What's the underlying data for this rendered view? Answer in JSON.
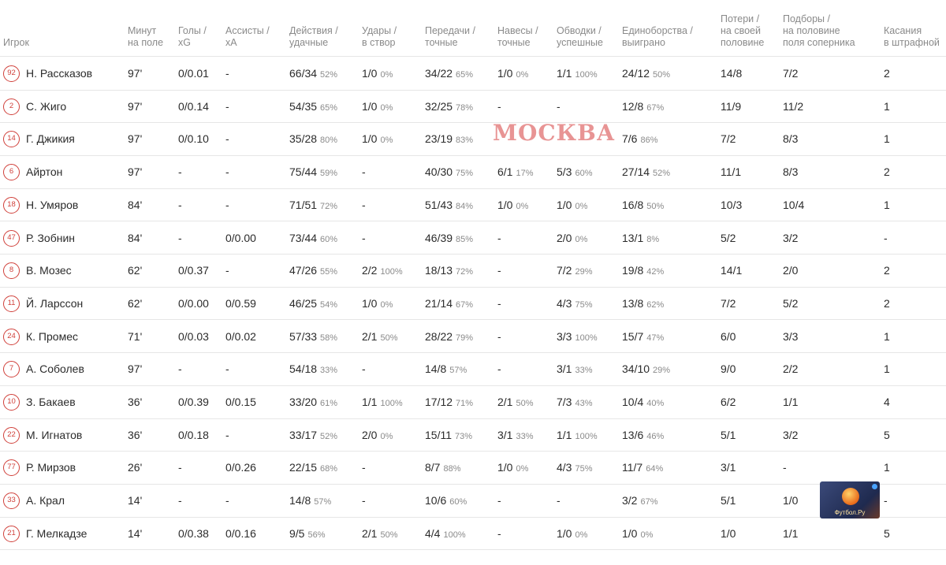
{
  "headers": [
    {
      "l1": "",
      "l2": "Игрок"
    },
    {
      "l1": "Минут",
      "l2": "на поле"
    },
    {
      "l1": "Голы /",
      "l2": "xG"
    },
    {
      "l1": "Ассисты /",
      "l2": "xA"
    },
    {
      "l1": "Действия /",
      "l2": "удачные"
    },
    {
      "l1": "Удары /",
      "l2": "в створ"
    },
    {
      "l1": "Передачи /",
      "l2": "точные"
    },
    {
      "l1": "Навесы /",
      "l2": "точные"
    },
    {
      "l1": "Обводки /",
      "l2": "успешные"
    },
    {
      "l1": "Единоборства /",
      "l2": "выиграно"
    },
    {
      "l0": "Потери /",
      "l1": "на своей",
      "l2": "половине"
    },
    {
      "l0": "Подборы /",
      "l1": "на половине",
      "l2": "поля соперника"
    },
    {
      "l1": "Касания",
      "l2": "в штрафной"
    }
  ],
  "watermark": "МОСКВА",
  "logo_text": "Футбол.Ру",
  "colors": {
    "accent": "#d0403a",
    "muted": "#8a8a8a"
  },
  "rows": [
    {
      "num": "92",
      "name": "Н. Рассказов",
      "min": "97'",
      "goals": "0/0.01",
      "ast": "-",
      "act": "66/34",
      "actp": "52%",
      "shots": "1/0",
      "shotsp": "0%",
      "pass": "34/22",
      "passp": "65%",
      "cross": "1/0",
      "crossp": "0%",
      "drib": "1/1",
      "dribp": "100%",
      "duel": "24/12",
      "duelp": "50%",
      "loss": "14/8",
      "rec": "7/2",
      "touch": "2"
    },
    {
      "num": "2",
      "name": "С. Жиго",
      "min": "97'",
      "goals": "0/0.14",
      "ast": "-",
      "act": "54/35",
      "actp": "65%",
      "shots": "1/0",
      "shotsp": "0%",
      "pass": "32/25",
      "passp": "78%",
      "cross": "-",
      "crossp": "",
      "drib": "-",
      "dribp": "",
      "duel": "12/8",
      "duelp": "67%",
      "loss": "11/9",
      "rec": "11/2",
      "touch": "1"
    },
    {
      "num": "14",
      "name": "Г. Джикия",
      "min": "97'",
      "goals": "0/0.10",
      "ast": "-",
      "act": "35/28",
      "actp": "80%",
      "shots": "1/0",
      "shotsp": "0%",
      "pass": "23/19",
      "passp": "83%",
      "cross": "",
      "crossp": "",
      "drib": "",
      "dribp": "",
      "duel": "7/6",
      "duelp": "86%",
      "loss": "7/2",
      "rec": "8/3",
      "touch": "1"
    },
    {
      "num": "6",
      "name": "Айртон",
      "min": "97'",
      "goals": "-",
      "ast": "-",
      "act": "75/44",
      "actp": "59%",
      "shots": "-",
      "shotsp": "",
      "pass": "40/30",
      "passp": "75%",
      "cross": "6/1",
      "crossp": "17%",
      "drib": "5/3",
      "dribp": "60%",
      "duel": "27/14",
      "duelp": "52%",
      "loss": "11/1",
      "rec": "8/3",
      "touch": "2"
    },
    {
      "num": "18",
      "name": "Н. Умяров",
      "min": "84'",
      "goals": "-",
      "ast": "-",
      "act": "71/51",
      "actp": "72%",
      "shots": "-",
      "shotsp": "",
      "pass": "51/43",
      "passp": "84%",
      "cross": "1/0",
      "crossp": "0%",
      "drib": "1/0",
      "dribp": "0%",
      "duel": "16/8",
      "duelp": "50%",
      "loss": "10/3",
      "rec": "10/4",
      "touch": "1"
    },
    {
      "num": "47",
      "name": "Р. Зобнин",
      "min": "84'",
      "goals": "-",
      "ast": "0/0.00",
      "act": "73/44",
      "actp": "60%",
      "shots": "-",
      "shotsp": "",
      "pass": "46/39",
      "passp": "85%",
      "cross": "-",
      "crossp": "",
      "drib": "2/0",
      "dribp": "0%",
      "duel": "13/1",
      "duelp": "8%",
      "loss": "5/2",
      "rec": "3/2",
      "touch": "-"
    },
    {
      "num": "8",
      "name": "В. Мозес",
      "min": "62'",
      "goals": "0/0.37",
      "ast": "-",
      "act": "47/26",
      "actp": "55%",
      "shots": "2/2",
      "shotsp": "100%",
      "pass": "18/13",
      "passp": "72%",
      "cross": "-",
      "crossp": "",
      "drib": "7/2",
      "dribp": "29%",
      "duel": "19/8",
      "duelp": "42%",
      "loss": "14/1",
      "rec": "2/0",
      "touch": "2"
    },
    {
      "num": "11",
      "name": "Й. Ларссон",
      "min": "62'",
      "goals": "0/0.00",
      "ast": "0/0.59",
      "act": "46/25",
      "actp": "54%",
      "shots": "1/0",
      "shotsp": "0%",
      "pass": "21/14",
      "passp": "67%",
      "cross": "-",
      "crossp": "",
      "drib": "4/3",
      "dribp": "75%",
      "duel": "13/8",
      "duelp": "62%",
      "loss": "7/2",
      "rec": "5/2",
      "touch": "2"
    },
    {
      "num": "24",
      "name": "К. Промес",
      "min": "71'",
      "goals": "0/0.03",
      "ast": "0/0.02",
      "act": "57/33",
      "actp": "58%",
      "shots": "2/1",
      "shotsp": "50%",
      "pass": "28/22",
      "passp": "79%",
      "cross": "-",
      "crossp": "",
      "drib": "3/3",
      "dribp": "100%",
      "duel": "15/7",
      "duelp": "47%",
      "loss": "6/0",
      "rec": "3/3",
      "touch": "1"
    },
    {
      "num": "7",
      "name": "А. Соболев",
      "min": "97'",
      "goals": "-",
      "ast": "-",
      "act": "54/18",
      "actp": "33%",
      "shots": "-",
      "shotsp": "",
      "pass": "14/8",
      "passp": "57%",
      "cross": "-",
      "crossp": "",
      "drib": "3/1",
      "dribp": "33%",
      "duel": "34/10",
      "duelp": "29%",
      "loss": "9/0",
      "rec": "2/2",
      "touch": "1"
    },
    {
      "num": "10",
      "name": "З. Бакаев",
      "min": "36'",
      "goals": "0/0.39",
      "ast": "0/0.15",
      "act": "33/20",
      "actp": "61%",
      "shots": "1/1",
      "shotsp": "100%",
      "pass": "17/12",
      "passp": "71%",
      "cross": "2/1",
      "crossp": "50%",
      "drib": "7/3",
      "dribp": "43%",
      "duel": "10/4",
      "duelp": "40%",
      "loss": "6/2",
      "rec": "1/1",
      "touch": "4"
    },
    {
      "num": "22",
      "name": "М. Игнатов",
      "min": "36'",
      "goals": "0/0.18",
      "ast": "-",
      "act": "33/17",
      "actp": "52%",
      "shots": "2/0",
      "shotsp": "0%",
      "pass": "15/11",
      "passp": "73%",
      "cross": "3/1",
      "crossp": "33%",
      "drib": "1/1",
      "dribp": "100%",
      "duel": "13/6",
      "duelp": "46%",
      "loss": "5/1",
      "rec": "3/2",
      "touch": "5"
    },
    {
      "num": "77",
      "name": "Р. Мирзов",
      "min": "26'",
      "goals": "-",
      "ast": "0/0.26",
      "act": "22/15",
      "actp": "68%",
      "shots": "-",
      "shotsp": "",
      "pass": "8/7",
      "passp": "88%",
      "cross": "1/0",
      "crossp": "0%",
      "drib": "4/3",
      "dribp": "75%",
      "duel": "11/7",
      "duelp": "64%",
      "loss": "3/1",
      "rec": "-",
      "touch": "1"
    },
    {
      "num": "33",
      "name": "А. Крал",
      "min": "14'",
      "goals": "-",
      "ast": "-",
      "act": "14/8",
      "actp": "57%",
      "shots": "-",
      "shotsp": "",
      "pass": "10/6",
      "passp": "60%",
      "cross": "-",
      "crossp": "",
      "drib": "-",
      "dribp": "",
      "duel": "3/2",
      "duelp": "67%",
      "loss": "5/1",
      "rec": "1/0",
      "touch": "-"
    },
    {
      "num": "21",
      "name": "Г. Мелкадзе",
      "min": "14'",
      "goals": "0/0.38",
      "ast": "0/0.16",
      "act": "9/5",
      "actp": "56%",
      "shots": "2/1",
      "shotsp": "50%",
      "pass": "4/4",
      "passp": "100%",
      "cross": "-",
      "crossp": "",
      "drib": "1/0",
      "dribp": "0%",
      "duel": "1/0",
      "duelp": "0%",
      "loss": "1/0",
      "rec": "1/1",
      "touch": "5"
    }
  ]
}
